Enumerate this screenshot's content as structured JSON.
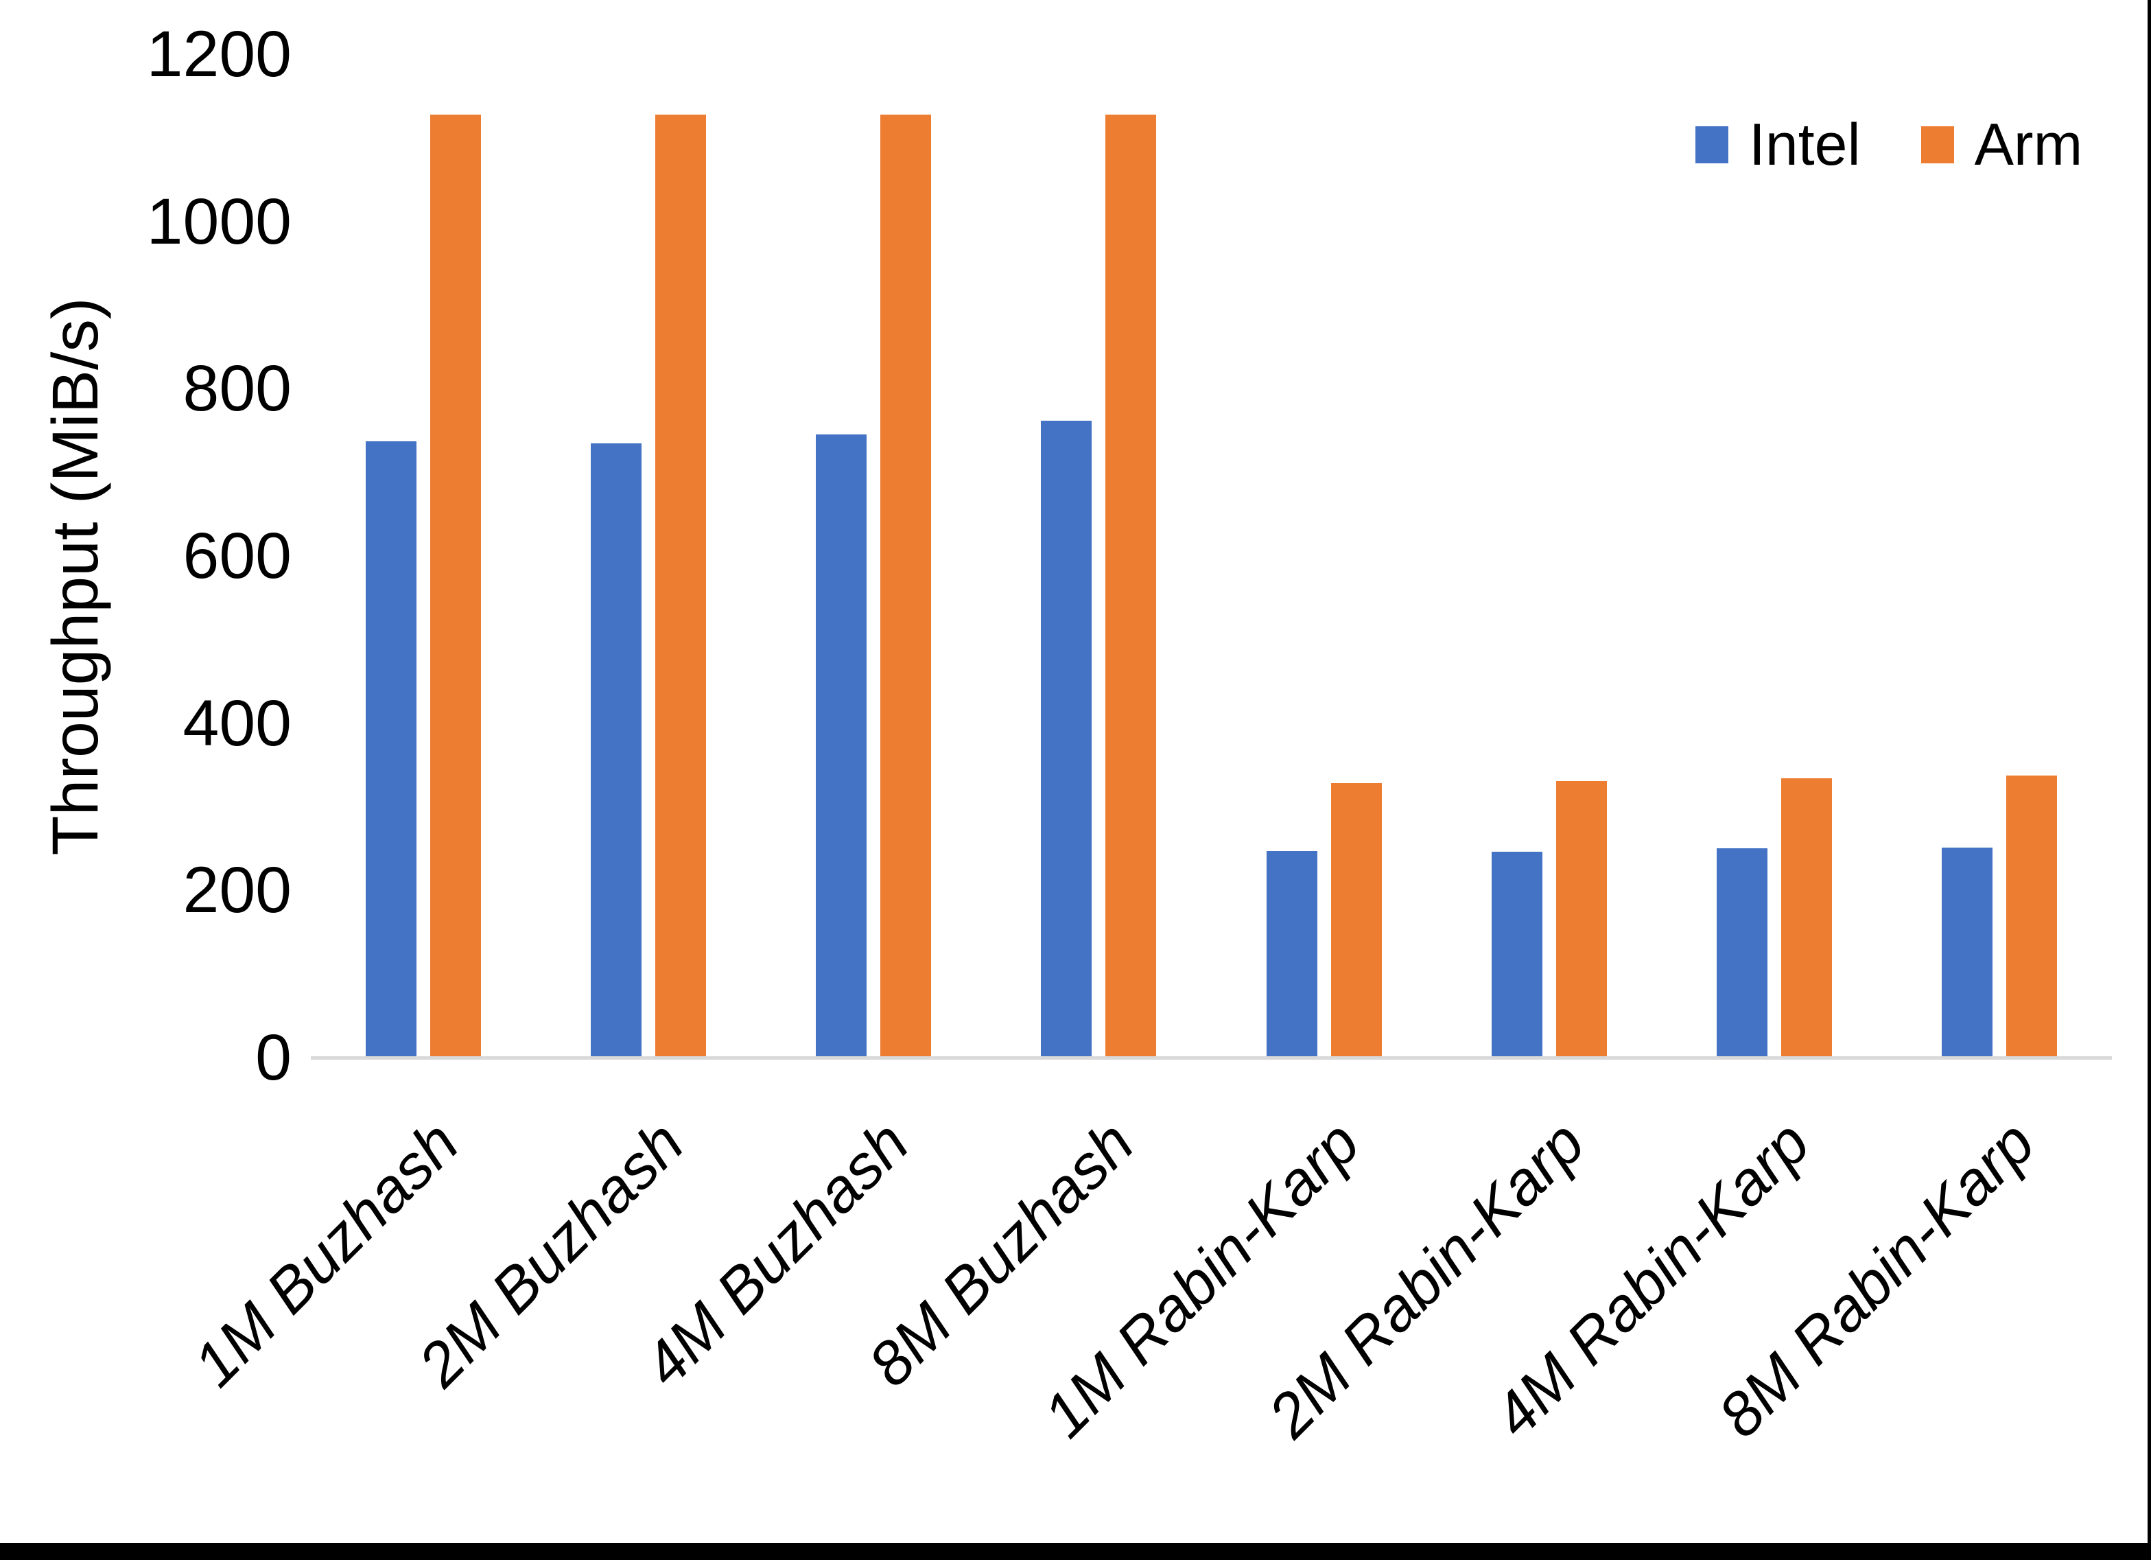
{
  "chart_data": {
    "type": "bar",
    "title": "",
    "xlabel": "",
    "ylabel": "Throughput (MiB/s)",
    "ylim": [
      0,
      1200
    ],
    "yticks": [
      0,
      200,
      400,
      600,
      800,
      1000,
      1200
    ],
    "grid": false,
    "legend_position": "top-right",
    "categories": [
      "1M Buzhash",
      "2M Buzhash",
      "4M Buzhash",
      "8M Buzhash",
      "1M Rabin-Karp",
      "2M Rabin-Karp",
      "4M Rabin-Karp",
      "8M Rabin-Karp"
    ],
    "series": [
      {
        "name": "Intel",
        "color": "#4472C4",
        "values": [
          737,
          735,
          745,
          762,
          247,
          246,
          250,
          251
        ]
      },
      {
        "name": "Arm",
        "color": "#ED7D31",
        "values": [
          1128,
          1128,
          1128,
          1128,
          328,
          331,
          334,
          337
        ]
      }
    ]
  },
  "legend": {
    "intel_label": "Intel",
    "arm_label": "Arm"
  },
  "colors": {
    "intel": "#4472C4",
    "arm": "#ED7D31",
    "axis_line": "#D9D9D9",
    "text": "#000000",
    "background": "#FFFFFF",
    "border": "#000000"
  }
}
